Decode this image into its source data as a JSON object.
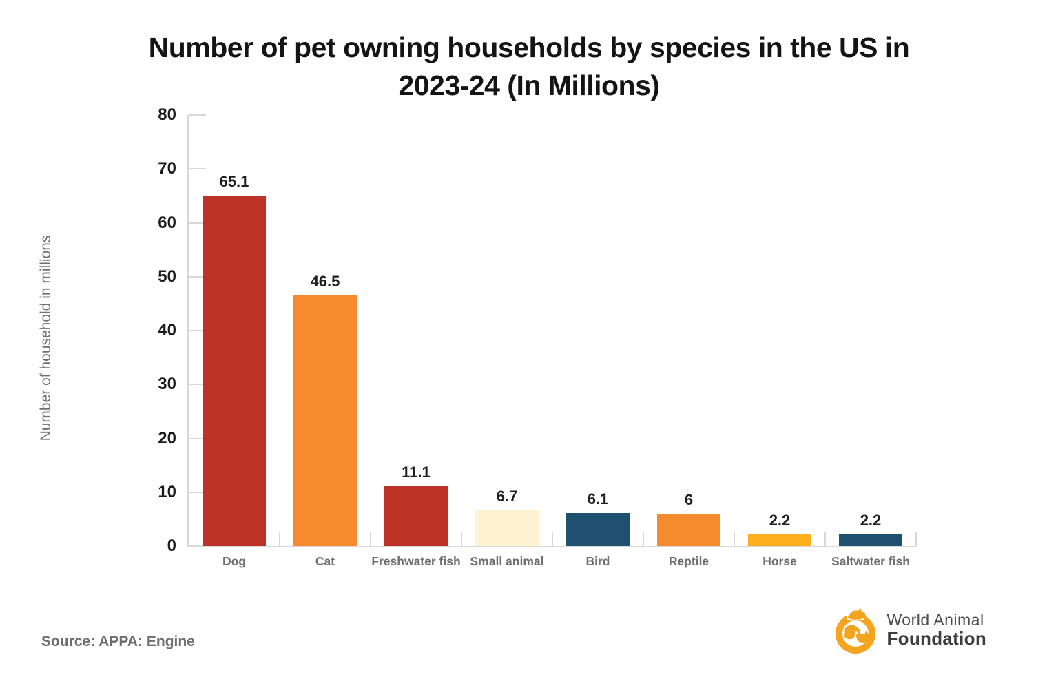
{
  "title": "Number of pet owning households by species in the US in 2023-24 (In Millions)",
  "chart_data": {
    "type": "bar",
    "title": "Number of pet owning households by species in the US in 2023-24 (In Millions)",
    "categories": [
      "Dog",
      "Cat",
      "Freshwater fish",
      "Small animal",
      "Bird",
      "Reptile",
      "Horse",
      "Saltwater fish"
    ],
    "values": [
      65.1,
      46.5,
      11.1,
      6.7,
      6.1,
      6,
      2.2,
      2.2
    ],
    "bar_colors": [
      "#BD3227",
      "#F58A2E",
      "#BD3227",
      "#FDF3D0",
      "#20506F",
      "#F58A2E",
      "#FDAF1D",
      "#20506F"
    ],
    "xlabel": "",
    "ylabel": "Number of household in millions",
    "ylim": [
      0,
      80
    ],
    "ytick_step": 10,
    "grid": false,
    "legend_position": "none"
  },
  "footer": {
    "source": "Source: APPA: Engine",
    "logo": {
      "line1": "World Animal",
      "line2": "Foundation"
    }
  },
  "colors": {
    "axis": "#d8d8d8",
    "tick_label": "#1a1a1a",
    "category_label": "#6f6f6f",
    "axis_title": "#6f6f6f",
    "source_text": "#6d6d6d",
    "logo_orange": "#F5A41F"
  }
}
